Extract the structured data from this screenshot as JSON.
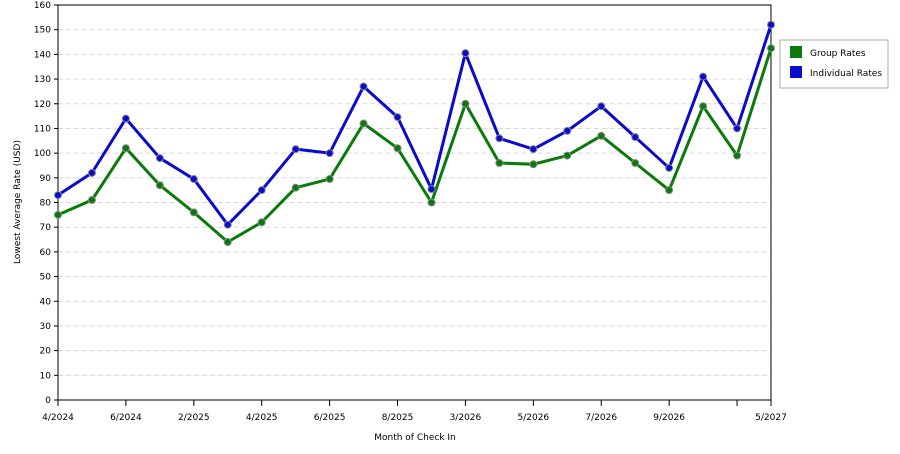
{
  "chart_data": {
    "type": "line",
    "xlabel": "Month of Check In",
    "ylabel": "Lowest Average Rate (USD)",
    "categories": [
      "4/2024",
      null,
      "6/2024",
      null,
      "2/2025",
      null,
      "4/2025",
      null,
      "6/2025",
      null,
      "8/2025",
      null,
      "3/2026",
      null,
      "5/2026",
      null,
      "7/2026",
      null,
      "9/2026",
      null,
      null,
      "5/2027"
    ],
    "series": [
      {
        "name": "Group Rates",
        "color": "#0a7a0a",
        "values": [
          75,
          81,
          102,
          87,
          76,
          64,
          72,
          86,
          89.5,
          112,
          102,
          80,
          120,
          96,
          95.5,
          99,
          107,
          96,
          85,
          119,
          99,
          142.5
        ]
      },
      {
        "name": "Individual Rates",
        "color": "#0a0ad0",
        "values": [
          83,
          92,
          114,
          98,
          89.5,
          71,
          85,
          101.6,
          100,
          127,
          114.6,
          85.4,
          140.5,
          106,
          101.6,
          109,
          119,
          106.5,
          94,
          131,
          110,
          152
        ]
      }
    ],
    "ylim": [
      0,
      160
    ],
    "yticks": [
      0,
      10,
      20,
      30,
      40,
      50,
      60,
      70,
      80,
      90,
      100,
      110,
      120,
      130,
      140,
      150,
      160
    ],
    "grid": true,
    "legend": "right"
  }
}
